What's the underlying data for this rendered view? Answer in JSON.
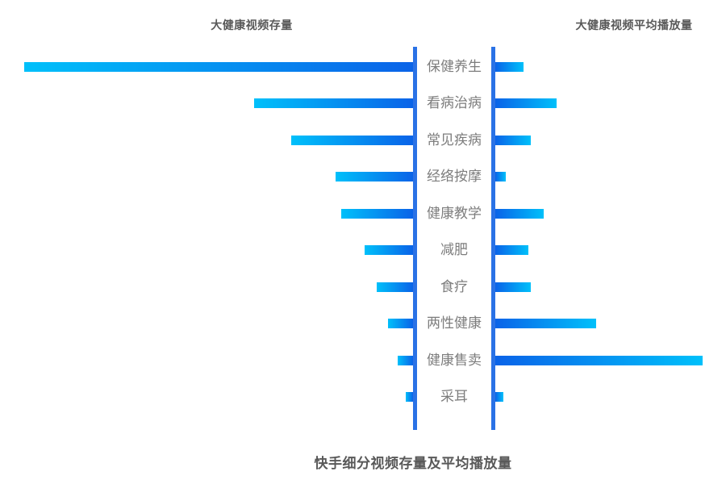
{
  "titles": {
    "left_column": "大健康视频存量",
    "right_column": "大健康视频平均播放量",
    "bottom": "快手细分视频存量及平均播放量"
  },
  "colors": {
    "bar_tip_cyan": "#00c0fa",
    "bar_base_blue": "#0a63e8",
    "axis_blue": "#2a72e6",
    "title_text": "#595959",
    "label_text": "#7d7d7d",
    "background": "#ffffff"
  },
  "chart_data": {
    "type": "bar",
    "variant": "bidirectional-tornado-horizontal",
    "title": "快手细分视频存量及平均播放量",
    "categories": [
      "保健养生",
      "看病治病",
      "常见疾病",
      "经络按摩",
      "健康教学",
      "减肥",
      "食疗",
      "两性健康",
      "健康售卖",
      "采耳"
    ],
    "series": [
      {
        "name": "大健康视频存量",
        "side": "left",
        "values": [
          482,
          197,
          151,
          96,
          89,
          60,
          45,
          31,
          19,
          9
        ]
      },
      {
        "name": "大健康视频平均播放量",
        "side": "right",
        "values": [
          35,
          76,
          44,
          13,
          60,
          41,
          44,
          125,
          257,
          10
        ]
      }
    ],
    "value_unit": "relative bar length (no numeric axis shown in chart)",
    "axis_labels_position": "center between mirrored axes",
    "legend_position": "top, as column headers",
    "grid": false,
    "gradient": "cyan at free tip to blue at axis"
  }
}
